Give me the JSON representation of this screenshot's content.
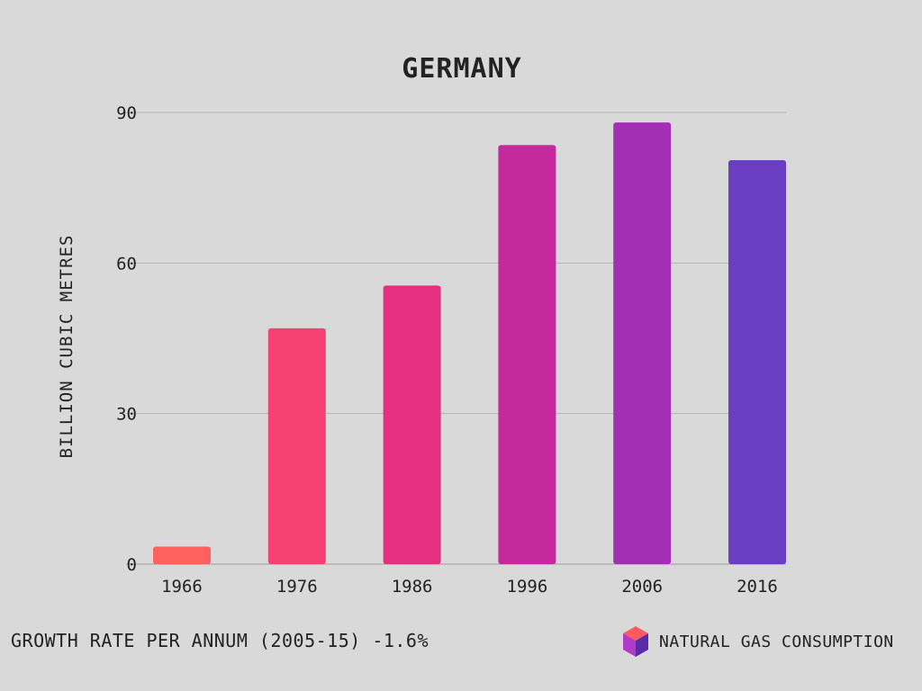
{
  "chart_data": {
    "type": "bar",
    "title": "GERMANY",
    "xlabel": "",
    "ylabel": "BILLION CUBIC METRES",
    "categories": [
      "1966",
      "1976",
      "1986",
      "1996",
      "2006",
      "2016"
    ],
    "series": [
      {
        "name": "NATURAL GAS CONSUMPTION",
        "values": [
          3.5,
          47,
          55.5,
          83.5,
          88,
          80.5
        ]
      }
    ],
    "colors": [
      "#ff6060",
      "#f54272",
      "#e4307f",
      "#c42a9c",
      "#a22fb4",
      "#6a3dc2"
    ],
    "ylim": [
      0,
      90
    ],
    "yticks": [
      "0",
      "30",
      "60",
      "90"
    ],
    "grid": true,
    "legend": "bottom-right"
  },
  "footer": {
    "growth_rate": "GROWTH RATE PER ANNUM (2005-15) -1.6%",
    "legend_label": "NATURAL GAS CONSUMPTION",
    "legend_icon": "cube-icon"
  }
}
